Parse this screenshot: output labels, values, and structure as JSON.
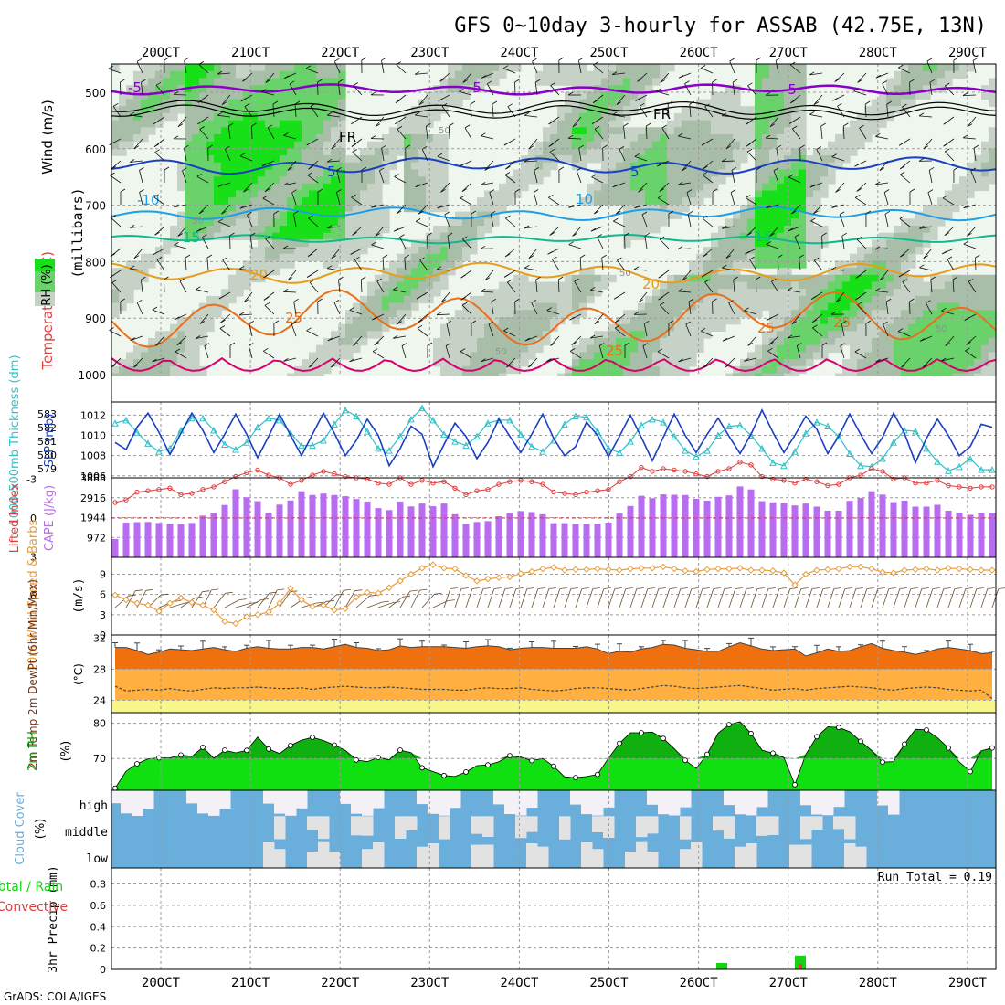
{
  "title": "GFS 0~10day 3-hourly for ASSAB (42.75E, 13N)",
  "credit": "GrADS: COLA/IGES",
  "colors": {
    "grid": "#9a9a9a",
    "purple": "#8a00c8",
    "darkblue": "#1a3fc0",
    "blue": "#1e6ee0",
    "lightblue": "#1e9ee6",
    "teal": "#10b88a",
    "orange": "#e89c1c",
    "darkorange": "#e8701c",
    "magenta": "#d8006e",
    "rh_light": "#eef6ee",
    "rh_gray": "#c6d2c6",
    "rh_grayg": "#a8bea8",
    "rh_green": "#6ad26a",
    "rh_bright": "#18e018",
    "cape": "#b86cf0",
    "lifted": "#e03c3c",
    "wind": "#e89c3c",
    "temp": "#f07010",
    "temp_mid": "#ffb040",
    "temp_low": "#f6f68a",
    "rh2m": "#10e010",
    "rh2m_dark": "#10b010",
    "cloud_fill": "#6aaedc",
    "cloud_clear": "#f4f0f8",
    "cloud_gray": "#e2e2e2",
    "precip_total": "#18d018",
    "precip_conv": "#e03c3c",
    "slp": "#1a3fc0",
    "thickness": "#30c0c8"
  },
  "chart_data": [
    {
      "type": "heatmap",
      "panel": "upper-air",
      "ylabel_temperature": "Temperature (°C)",
      "ylabel_wind": "Wind (m/s)",
      "ylabel_unit": "(millibars)",
      "legend_rh": "RH (%)",
      "y_ticks": [
        "500",
        "600",
        "700",
        "800",
        "900",
        "1000"
      ],
      "ylim": [
        1000,
        450
      ],
      "x_ticks": [
        "20OCT",
        "21OCT",
        "22OCT",
        "23OCT",
        "24OCT",
        "25OCT",
        "26OCT",
        "27OCT",
        "28OCT",
        "29OCT"
      ],
      "isotherms": [
        {
          "label": "-5",
          "level": "500mb"
        },
        {
          "label": "FR",
          "level": "560mb"
        },
        {
          "label": "-5",
          "level": "630mb"
        },
        {
          "label": "10",
          "level": "700mb"
        },
        {
          "label": "15",
          "level": "760mb"
        },
        {
          "label": "20",
          "level": "820mb"
        },
        {
          "label": "25",
          "level": "900mb"
        }
      ],
      "contour_labels": [
        "-5",
        "-5",
        "-5",
        "FR",
        "FR",
        "5",
        "5",
        "-10",
        "10",
        "15",
        "15",
        "20",
        "20",
        "25",
        "25",
        "25",
        "25",
        "50",
        "50",
        "50",
        "50",
        "50"
      ]
    },
    {
      "type": "line",
      "panel": "slp-thickness",
      "ylabel_left": "1000-500mb Thickness (dm)",
      "ylabel_right": "SLP (mb)",
      "y_ticks_left": [
        "579",
        "580",
        "581",
        "582",
        "583"
      ],
      "y_ticks_right": [
        "1006",
        "1008",
        "1010",
        "1012"
      ],
      "ylim_right": [
        1005.8,
        1013.3
      ],
      "series": [
        {
          "name": "SLP (mb)",
          "values": [
            1009.3,
            1008.6,
            1010.8,
            1012.2,
            1010.3,
            1008.1,
            1010.2,
            1012.2,
            1010.5,
            1008.3,
            1010.1,
            1012.1,
            1010.1,
            1007.8,
            1009.9,
            1012.1,
            1010.0,
            1008.0,
            1010.1,
            1012.2,
            1010.2,
            1008.0,
            1009.5,
            1011.6,
            1010.0,
            1007.0,
            1008.7,
            1010.9,
            1010.1,
            1006.9,
            1009.1,
            1011.2,
            1009.9,
            1007.7,
            1009.3,
            1011.6,
            1009.9,
            1008.3,
            1010.1,
            1012.1,
            1009.7,
            1008.0,
            1008.9,
            1011.3,
            1010.0,
            1007.9,
            1009.9,
            1012.0,
            1009.8,
            1007.5,
            1009.8,
            1012.1,
            1010.0,
            1008.3,
            1010.1,
            1011.7,
            1009.9,
            1008.2,
            1010.1,
            1012.5,
            1010.3,
            1008.3,
            1010.0,
            1011.9,
            1010.6,
            1008.2,
            1009.9,
            1012.1,
            1010.1,
            1008.2,
            1009.8,
            1012.2,
            1010.2,
            1007.3,
            1009.7,
            1011.6,
            1010.0,
            1008.0,
            1008.9,
            1011.1,
            1010.8
          ]
        },
        {
          "name": "1000-500mb Thickness (dm)",
          "values": [
            1011.2,
            1011.5,
            1010.3,
            1009.2,
            1008.4,
            1008.7,
            1010.5,
            1011.7,
            1011.7,
            1010.5,
            1009.1,
            1008.6,
            1009.3,
            1010.8,
            1011.7,
            1011.5,
            1010.2,
            1009.0,
            1009.0,
            1009.5,
            1011.1,
            1012.5,
            1011.9,
            1010.4,
            1008.7,
            1008.5,
            1009.9,
            1011.6,
            1012.7,
            1011.5,
            1010.1,
            1009.4,
            1009.0,
            1009.9,
            1011.2,
            1011.5,
            1011.5,
            1010.1,
            1008.9,
            1008.4,
            1009.5,
            1011.1,
            1011.9,
            1011.8,
            1010.4,
            1008.7,
            1008.3,
            1009.4,
            1011.0,
            1011.6,
            1011.3,
            1009.9,
            1008.5,
            1007.9,
            1008.5,
            1010.0,
            1010.9,
            1011.0,
            1010.0,
            1008.7,
            1007.3,
            1007.0,
            1008.4,
            1010.2,
            1011.3,
            1010.9,
            1009.9,
            1008.2,
            1007.0,
            1006.9,
            1007.7,
            1009.3,
            1010.5,
            1010.4,
            1008.7,
            1007.4,
            1006.5,
            1006.9,
            1007.7,
            1006.6,
            1006.6
          ]
        }
      ]
    },
    {
      "type": "bar",
      "panel": "cape-lifted",
      "ylabel_left": "Lifted Index",
      "ylabel_right": "CAPE (J/kg)",
      "y_ticks_left": [
        "-3",
        "0",
        "3",
        "6"
      ],
      "y_ticks_right": [
        "972",
        "1944",
        "2916",
        "3888"
      ],
      "ylim_right": [
        0,
        3888
      ],
      "series": [
        {
          "name": "CAPE (J/kg)",
          "values": [
            900,
            1700,
            1720,
            1730,
            1680,
            1640,
            1620,
            1680,
            2040,
            2180,
            2560,
            3330,
            2940,
            2750,
            2150,
            2580,
            2780,
            3230,
            3050,
            3120,
            3050,
            2990,
            2850,
            2730,
            2410,
            2310,
            2730,
            2490,
            2630,
            2500,
            2630,
            2110,
            1630,
            1730,
            1770,
            2010,
            2170,
            2260,
            2210,
            2110,
            1670,
            1670,
            1630,
            1630,
            1650,
            1700,
            2140,
            2510,
            3010,
            2890,
            3080,
            3060,
            3050,
            2860,
            2770,
            2960,
            3030,
            3470,
            3320,
            2750,
            2690,
            2650,
            2540,
            2630,
            2480,
            2280,
            2280,
            2760,
            2900,
            3230,
            3070,
            2700,
            2770,
            2480,
            2480,
            2570,
            2280,
            2190,
            2080,
            2160,
            2170
          ]
        },
        {
          "name": "Lifted Index",
          "values": [
            -1.2,
            -1.4,
            -2.0,
            -2.1,
            -2.2,
            -2.3,
            -1.8,
            -1.9,
            -2.2,
            -2.4,
            -2.8,
            -3.2,
            -3.5,
            -3.7,
            -3.3,
            -3.1,
            -2.6,
            -2.9,
            -3.3,
            -3.6,
            -3.4,
            -3.2,
            -3.1,
            -3.0,
            -2.7,
            -2.6,
            -3.1,
            -2.6,
            -2.9,
            -2.7,
            -2.8,
            -2.3,
            -1.8,
            -2.1,
            -2.2,
            -2.6,
            -2.8,
            -2.9,
            -2.8,
            -2.6,
            -2.0,
            -1.9,
            -1.8,
            -2.0,
            -2.1,
            -2.2,
            -2.8,
            -3.2,
            -3.9,
            -3.6,
            -3.8,
            -3.7,
            -3.6,
            -3.4,
            -3.2,
            -3.6,
            -3.8,
            -4.3,
            -4.1,
            -3.2,
            -3.0,
            -2.9,
            -2.7,
            -3.0,
            -2.8,
            -2.5,
            -2.6,
            -3.1,
            -3.3,
            -3.8,
            -3.6,
            -3.0,
            -3.1,
            -2.7,
            -2.7,
            -2.9,
            -2.5,
            -2.4,
            -2.3,
            -2.4,
            -2.4
          ]
        }
      ]
    },
    {
      "type": "line",
      "panel": "wind10m",
      "ylabel": "10m Wind Speed & Barbs",
      "ylabel_unit": "(m/s)",
      "y_ticks": [
        "0",
        "3",
        "6",
        "9"
      ],
      "ylim": [
        0,
        11.5
      ],
      "series": [
        {
          "name": "10m Wind Speed (m/s)",
          "values": [
            5.9,
            5.2,
            4.7,
            4.4,
            3.5,
            4.7,
            5.5,
            4.8,
            4.4,
            3.7,
            2.0,
            1.7,
            2.7,
            3.0,
            3.4,
            4.7,
            6.9,
            5.2,
            4.2,
            4.4,
            3.7,
            3.9,
            5.6,
            6.3,
            6.2,
            7.0,
            8.0,
            9.0,
            9.9,
            10.4,
            9.9,
            9.8,
            8.8,
            8.0,
            8.3,
            8.5,
            8.6,
            9.1,
            9.4,
            9.8,
            10.0,
            9.6,
            9.7,
            9.7,
            9.8,
            9.7,
            9.6,
            9.8,
            9.9,
            9.9,
            10.1,
            9.8,
            9.5,
            9.4,
            9.7,
            9.8,
            9.8,
            9.9,
            9.6,
            9.6,
            9.5,
            9.2,
            7.4,
            9.0,
            9.6,
            9.7,
            9.8,
            10.1,
            10.1,
            9.8,
            9.3,
            9.2,
            9.6,
            9.7,
            9.8,
            9.6,
            9.9,
            9.8,
            9.7,
            9.6,
            9.6
          ]
        }
      ]
    },
    {
      "type": "area",
      "panel": "temp2m",
      "ylabel": "2m Temp 2m DewPt (6hr Min/Max)",
      "ylabel_unit": "(°C)",
      "y_ticks": [
        "24",
        "28",
        "32"
      ],
      "ylim": [
        22.4,
        32.4
      ],
      "series": [
        {
          "name": "2m Temp",
          "values": [
            30.8,
            30.8,
            30.4,
            29.9,
            30.2,
            30.6,
            30.5,
            30.4,
            30.6,
            30.8,
            30.5,
            30.3,
            30.7,
            30.9,
            30.7,
            30.6,
            30.6,
            30.8,
            30.8,
            30.6,
            30.9,
            31.2,
            30.8,
            30.7,
            30.4,
            30.5,
            31.0,
            30.8,
            30.9,
            30.9,
            30.9,
            30.8,
            30.7,
            30.9,
            31.0,
            30.9,
            30.5,
            30.7,
            30.8,
            30.8,
            30.7,
            30.7,
            30.7,
            30.9,
            30.6,
            30.0,
            30.3,
            30.2,
            30.6,
            30.8,
            31.2,
            31.1,
            30.7,
            30.5,
            30.3,
            30.3,
            30.9,
            31.4,
            31.0,
            30.6,
            30.4,
            30.5,
            30.6,
            29.7,
            30.1,
            30.6,
            30.3,
            30.4,
            30.9,
            31.3,
            30.7,
            30.4,
            30.2,
            29.9,
            30.2,
            30.6,
            30.8,
            30.6,
            30.4,
            30.0,
            30.1
          ]
        },
        {
          "name": "2m DewPt",
          "values": [
            25.8,
            25.2,
            25.3,
            25.4,
            25.3,
            25.5,
            25.3,
            25.2,
            25.4,
            25.6,
            25.5,
            25.6,
            25.6,
            25.7,
            25.6,
            25.5,
            25.5,
            25.6,
            25.4,
            25.6,
            25.7,
            25.8,
            25.7,
            25.6,
            25.6,
            25.7,
            25.6,
            25.5,
            25.4,
            25.4,
            25.4,
            25.3,
            25.3,
            25.5,
            25.6,
            25.5,
            25.5,
            25.6,
            25.4,
            25.3,
            25.2,
            25.3,
            25.5,
            25.6,
            25.6,
            25.5,
            25.4,
            25.3,
            25.5,
            25.7,
            25.9,
            25.8,
            25.6,
            25.5,
            25.6,
            25.7,
            25.8,
            25.9,
            25.7,
            25.5,
            25.3,
            25.4,
            25.5,
            25.3,
            25.5,
            25.6,
            25.7,
            25.8,
            25.7,
            25.6,
            25.4,
            25.3,
            25.5,
            25.6,
            25.7,
            25.6,
            25.4,
            25.3,
            25.2,
            25.3,
            24.2
          ]
        }
      ]
    },
    {
      "type": "area",
      "panel": "rh2m",
      "ylabel": "2m RH",
      "ylabel_unit": "(%)",
      "y_ticks": [
        "70",
        "80"
      ],
      "ylim": [
        61,
        83
      ],
      "series": [
        {
          "name": "2m RH (%)",
          "values": [
            61.6,
            66.4,
            68.5,
            69.9,
            70.2,
            70.2,
            71.0,
            70.6,
            73.2,
            70.1,
            72.4,
            71.6,
            72.3,
            76.1,
            72.7,
            71.4,
            73.7,
            75.2,
            76.0,
            75.1,
            73.8,
            72.3,
            69.6,
            69.1,
            70.3,
            69.6,
            72.4,
            71.7,
            67.4,
            66.3,
            65.2,
            64.9,
            66.2,
            68.0,
            68.2,
            69.1,
            70.8,
            70.4,
            69.4,
            70.0,
            67.8,
            64.8,
            64.6,
            64.9,
            65.5,
            70.1,
            74.3,
            77.3,
            77.3,
            77.5,
            75.7,
            72.8,
            69.5,
            67.2,
            71.2,
            77.2,
            79.6,
            80.4,
            77.1,
            72.4,
            71.5,
            70.3,
            62.6,
            71.2,
            76.2,
            79.0,
            78.8,
            77.6,
            74.9,
            72.3,
            69.0,
            69.1,
            74.1,
            78.3,
            78.1,
            75.9,
            73.0,
            69.0,
            66.3,
            72.2,
            73.0
          ]
        }
      ]
    },
    {
      "type": "heatmap",
      "panel": "cloud-cover",
      "ylabel": "Cloud Cover",
      "ylabel_unit": "(%)",
      "rows": [
        "high",
        "middle",
        "low"
      ]
    },
    {
      "type": "bar",
      "panel": "precip",
      "ylabel_total": "Total / Rain",
      "ylabel_conv": "Convective",
      "ylabel": "3hr Precip (mm)",
      "y_ticks": [
        "0",
        "0.2",
        "0.4",
        "0.6",
        "0.8"
      ],
      "ylim": [
        0,
        0.95
      ],
      "run_total": "Run Total = 0.19",
      "bars": [
        {
          "date": "26OCT 06Z",
          "total": 0.06,
          "convective": 0.0
        },
        {
          "date": "27OCT 03Z",
          "total": 0.13,
          "convective": 0.05
        }
      ]
    }
  ]
}
